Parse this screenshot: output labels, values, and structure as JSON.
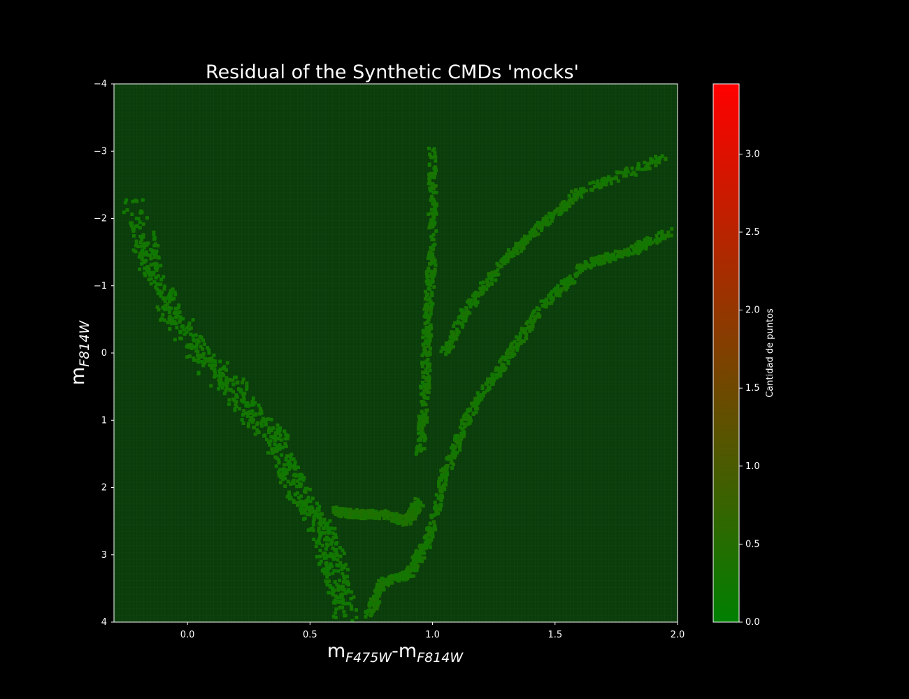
{
  "chart_data": {
    "type": "heatmap",
    "title": "Residual of the Synthetic CMDs 'mocks'",
    "xlabel": {
      "base1": "m",
      "sub1": "F475W",
      "sep": "-",
      "base2": "m",
      "sub2": "F814W"
    },
    "ylabel": {
      "base": "m",
      "sub": "F814W"
    },
    "xlim": [
      -0.3,
      2.0
    ],
    "ylim": [
      4,
      -4
    ],
    "y_inverted": true,
    "x_ticks": [
      "0.0",
      "0.5",
      "1.0",
      "1.5",
      "2.0"
    ],
    "x_tick_values": [
      0.0,
      0.5,
      1.0,
      1.5,
      2.0
    ],
    "y_ticks": [
      "−4",
      "−3",
      "−2",
      "−1",
      "0",
      "1",
      "2",
      "3",
      "4"
    ],
    "y_tick_values": [
      -4,
      -3,
      -2,
      -1,
      0,
      1,
      2,
      3,
      4
    ],
    "background_value": 0.0,
    "colorbar": {
      "label": "Cantidad de puntos",
      "range": [
        0.0,
        3.45
      ],
      "ticks": [
        "0.0",
        "0.5",
        "1.0",
        "1.5",
        "2.0",
        "2.5",
        "3.0"
      ],
      "tick_values": [
        0.0,
        0.5,
        1.0,
        1.5,
        2.0,
        2.5,
        3.0
      ],
      "color_low": "#008000",
      "color_high": "#ff0000"
    },
    "background_color": "#000000",
    "plot_bg_color": "#0a3a0a",
    "grid": true,
    "features": [
      {
        "name": "main-sequence",
        "points": [
          [
            -0.22,
            -2.2
          ],
          [
            -0.15,
            -1.3
          ],
          [
            -0.05,
            -0.5
          ],
          [
            0.1,
            0.2
          ],
          [
            0.25,
            0.8
          ],
          [
            0.38,
            1.4
          ],
          [
            0.45,
            2.1
          ],
          [
            0.55,
            2.6
          ],
          [
            0.6,
            3.2
          ],
          [
            0.65,
            3.9
          ]
        ],
        "value": 0.25
      },
      {
        "name": "subgiant-branch",
        "points": [
          [
            0.6,
            2.35
          ],
          [
            0.7,
            2.4
          ],
          [
            0.8,
            2.4
          ],
          [
            0.9,
            2.5
          ],
          [
            0.95,
            2.2
          ]
        ],
        "value": 0.35
      },
      {
        "name": "red-giant-branch",
        "points": [
          [
            0.95,
            1.5
          ],
          [
            0.97,
            0.5
          ],
          [
            0.98,
            -0.5
          ],
          [
            1.0,
            -1.5
          ],
          [
            1.0,
            -3.0
          ]
        ],
        "value": 0.3
      },
      {
        "name": "asymptotic-branch",
        "points": [
          [
            1.05,
            0.0
          ],
          [
            1.15,
            -0.7
          ],
          [
            1.3,
            -1.4
          ],
          [
            1.45,
            -1.9
          ],
          [
            1.6,
            -2.4
          ],
          [
            1.95,
            -2.9
          ]
        ],
        "value": 0.3
      },
      {
        "name": "giant-sequence",
        "points": [
          [
            0.74,
            3.9
          ],
          [
            0.8,
            3.4
          ],
          [
            0.9,
            3.3
          ],
          [
            0.98,
            2.8
          ],
          [
            1.05,
            1.8
          ],
          [
            1.15,
            0.9
          ],
          [
            1.3,
            0.1
          ],
          [
            1.45,
            -0.7
          ],
          [
            1.62,
            -1.3
          ],
          [
            1.8,
            -1.5
          ],
          [
            1.97,
            -1.8
          ]
        ],
        "value": 0.3
      }
    ]
  }
}
